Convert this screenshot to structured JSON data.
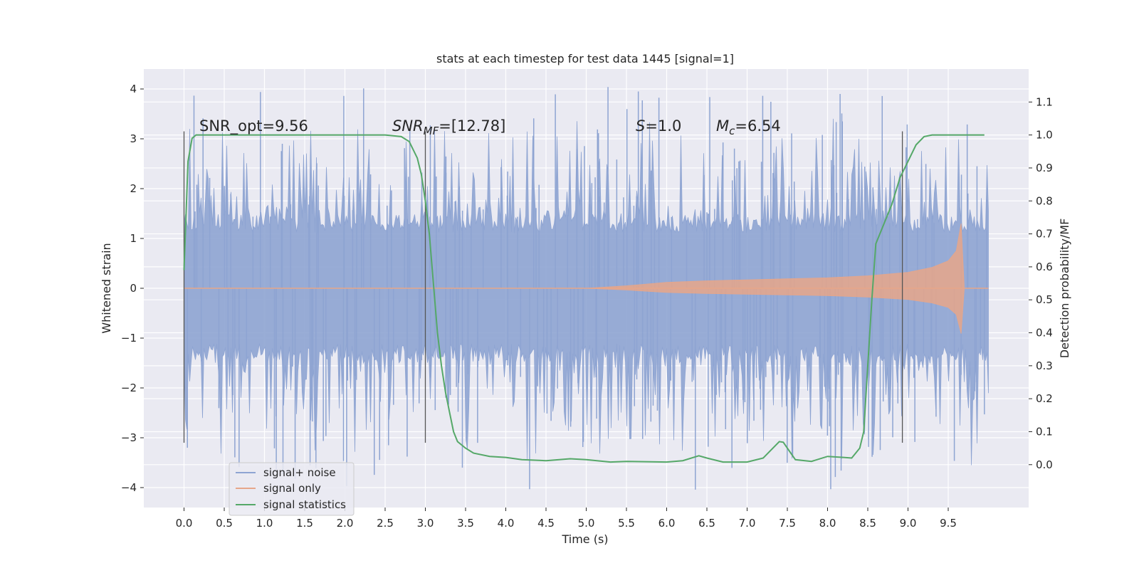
{
  "chart_data": {
    "type": "line",
    "title": "stats at each timestep for test data 1445 [signal=1]",
    "xlabel": "Time (s)",
    "ylabel": "Whitened strain",
    "ylabel_right": "Detection probability/MF",
    "xlim": [
      -0.5,
      10.5
    ],
    "ylim": [
      -4.4,
      4.4
    ],
    "ylim_right": [
      -0.13,
      1.2
    ],
    "x_ticks": [
      "0.0",
      "0.5",
      "1.0",
      "1.5",
      "2.0",
      "2.5",
      "3.0",
      "3.5",
      "4.0",
      "4.5",
      "5.0",
      "5.5",
      "6.0",
      "6.5",
      "7.0",
      "7.5",
      "8.0",
      "8.5",
      "9.0",
      "9.5"
    ],
    "y_ticks": [
      "4",
      "3",
      "2",
      "1",
      "0",
      "−1",
      "−2",
      "−3",
      "−4"
    ],
    "y_ticks_right": [
      "1.1",
      "1.0",
      "0.9",
      "0.8",
      "0.7",
      "0.6",
      "0.5",
      "0.4",
      "0.3",
      "0.2",
      "0.1",
      "0.0"
    ],
    "grid": true,
    "legend_position": "lower-left",
    "annotations": {
      "snr_opt": "SNR_opt=9.56",
      "snr_mf_main": "SNR",
      "snr_mf_sub": "MF",
      "snr_mf_value": "=[12.78]",
      "s_symbol": "S",
      "s_value": "=1.0",
      "mc_symbol": "M",
      "mc_sub": "c",
      "mc_value": "=6.54"
    },
    "vlines": [
      0.0,
      3.0,
      8.93
    ],
    "vline_range": [
      -3.1,
      3.15
    ],
    "series": [
      {
        "name": "signal+ noise",
        "color": "#8ea4d2",
        "x_range": [
          0.0,
          10.0
        ],
        "envelope_typical": 1.3,
        "envelope_peak": 4.05
      },
      {
        "name": "signal only",
        "color": "#e6a68a",
        "x": [
          0.0,
          5.0,
          5.5,
          6.0,
          6.5,
          7.0,
          7.5,
          8.0,
          8.5,
          9.0,
          9.3,
          9.5,
          9.6,
          9.66,
          9.7,
          10.0
        ],
        "amplitude": [
          0.0,
          0.0,
          0.05,
          0.12,
          0.15,
          0.17,
          0.19,
          0.21,
          0.25,
          0.32,
          0.42,
          0.55,
          0.75,
          1.3,
          0.0,
          0.0
        ]
      },
      {
        "name": "signal statistics",
        "color": "#55a868",
        "x": [
          0.0,
          0.05,
          0.1,
          0.15,
          0.2,
          0.3,
          0.5,
          1.0,
          2.0,
          2.5,
          2.7,
          2.8,
          2.9,
          2.95,
          3.0,
          3.05,
          3.1,
          3.15,
          3.2,
          3.25,
          3.3,
          3.35,
          3.4,
          3.5,
          3.6,
          3.8,
          4.0,
          4.2,
          4.5,
          4.8,
          5.0,
          5.3,
          5.5,
          6.0,
          6.2,
          6.4,
          6.5,
          6.7,
          7.0,
          7.2,
          7.3,
          7.4,
          7.45,
          7.5,
          7.6,
          7.8,
          8.0,
          8.2,
          8.3,
          8.4,
          8.45,
          8.5,
          8.55,
          8.6,
          8.7,
          8.8,
          8.9,
          9.0,
          9.1,
          9.2,
          9.3,
          9.5,
          9.7,
          9.95
        ],
        "y": [
          0.59,
          0.92,
          0.99,
          1.0,
          1.0,
          1.0,
          1.0,
          1.0,
          1.0,
          1.0,
          0.995,
          0.98,
          0.93,
          0.88,
          0.8,
          0.7,
          0.55,
          0.4,
          0.3,
          0.22,
          0.16,
          0.1,
          0.07,
          0.05,
          0.035,
          0.025,
          0.022,
          0.015,
          0.012,
          0.018,
          0.015,
          0.008,
          0.01,
          0.008,
          0.012,
          0.027,
          0.02,
          0.008,
          0.008,
          0.02,
          0.045,
          0.07,
          0.068,
          0.05,
          0.015,
          0.01,
          0.025,
          0.022,
          0.02,
          0.05,
          0.1,
          0.3,
          0.5,
          0.67,
          0.73,
          0.79,
          0.87,
          0.92,
          0.97,
          0.995,
          1.0,
          1.0,
          1.0,
          1.0
        ]
      }
    ]
  }
}
